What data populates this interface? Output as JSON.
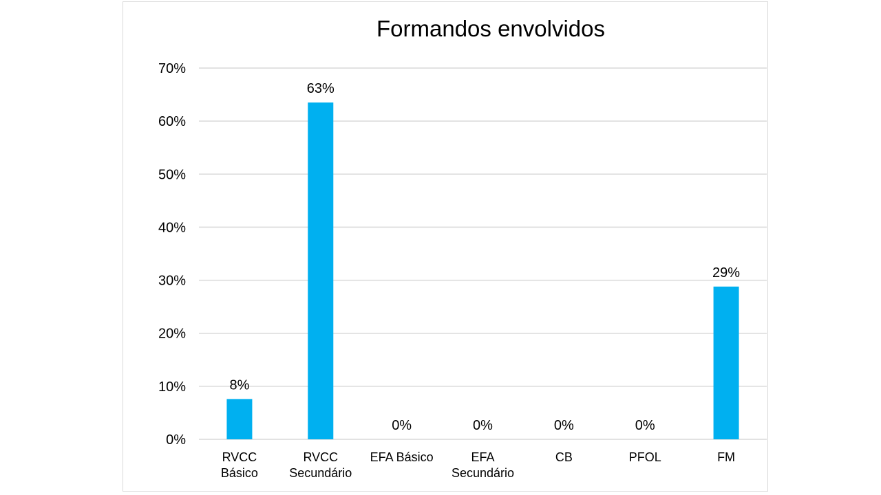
{
  "chart_data": {
    "type": "bar",
    "title": "Formandos envolvidos",
    "xlabel": "",
    "ylabel": "",
    "categories": [
      [
        "RVCC",
        "Básico"
      ],
      [
        "RVCC",
        "Secundário"
      ],
      [
        "EFA Básico"
      ],
      [
        "EFA",
        "Secundário"
      ],
      [
        "CB"
      ],
      [
        "PFOL"
      ],
      [
        "FM"
      ]
    ],
    "values": [
      0.076,
      0.635,
      0,
      0,
      0,
      0,
      0.288
    ],
    "data_labels": [
      "8%",
      "63%",
      "0%",
      "0%",
      "0%",
      "0%",
      "29%"
    ],
    "ylim": [
      0,
      0.7
    ],
    "yticks": [
      0,
      0.1,
      0.2,
      0.3,
      0.4,
      0.5,
      0.6,
      0.7
    ],
    "ytick_labels": [
      "0%",
      "10%",
      "20%",
      "30%",
      "40%",
      "50%",
      "60%",
      "70%"
    ],
    "grid": true,
    "legend": "none",
    "bar_color": "#00b0f0",
    "grid_color": "#d9d9d9"
  }
}
